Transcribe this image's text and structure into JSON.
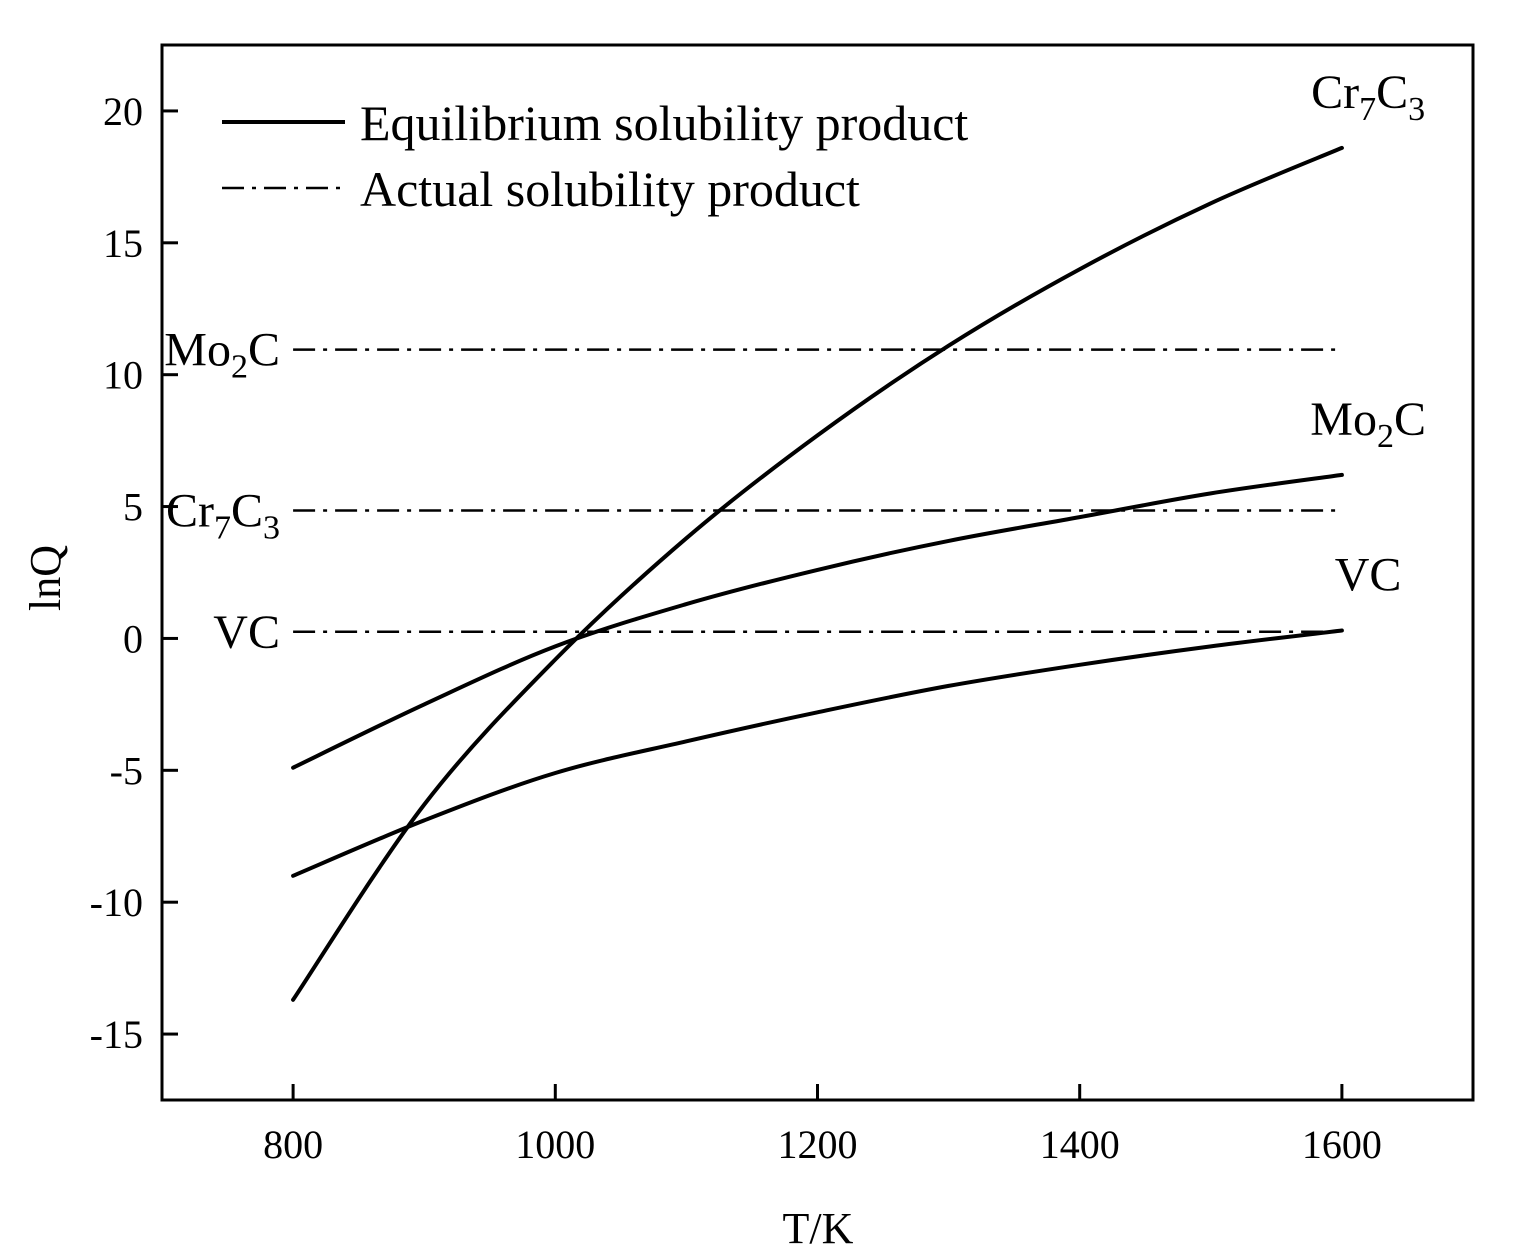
{
  "chart_data": {
    "type": "line",
    "xlabel": "T/K",
    "ylabel": "lnQ",
    "xlim": [
      700,
      1700
    ],
    "ylim": [
      -17.5,
      22.5
    ],
    "xticks": [
      800,
      1000,
      1200,
      1400,
      1600
    ],
    "xtick_labels": [
      "800",
      "1000",
      "1200",
      "1400",
      "1600"
    ],
    "yticks": [
      -15,
      -10,
      -5,
      0,
      5,
      10,
      15,
      20
    ],
    "ytick_labels": [
      "-15",
      "-10",
      "-5",
      "0",
      "5",
      "10",
      "15",
      "20"
    ],
    "grid": false,
    "legend": {
      "position": "top-left",
      "entries": [
        {
          "label": "Equilibrium solubility product",
          "style": "solid"
        },
        {
          "label": "Actual solubility product",
          "style": "dash-dot"
        }
      ]
    },
    "series": [
      {
        "name": "Cr7C3",
        "kind": "Equilibrium solubility product",
        "style": "solid",
        "label_parts": [
          {
            "t": "Cr"
          },
          {
            "t": "7",
            "sub": true
          },
          {
            "t": "C"
          },
          {
            "t": "3",
            "sub": true
          }
        ],
        "x": [
          800,
          900,
          1000,
          1100,
          1200,
          1300,
          1400,
          1500,
          1600
        ],
        "y": [
          -13.7,
          -6.3,
          -0.8,
          3.8,
          7.7,
          11.1,
          14.0,
          16.5,
          18.6
        ]
      },
      {
        "name": "Mo2C",
        "kind": "Equilibrium solubility product",
        "style": "solid",
        "label_parts": [
          {
            "t": "Mo"
          },
          {
            "t": "2",
            "sub": true
          },
          {
            "t": "C"
          }
        ],
        "x": [
          800,
          900,
          1000,
          1100,
          1200,
          1300,
          1400,
          1500,
          1600
        ],
        "y": [
          -4.9,
          -2.5,
          -0.3,
          1.3,
          2.6,
          3.7,
          4.6,
          5.5,
          6.2
        ]
      },
      {
        "name": "VC",
        "kind": "Equilibrium solubility product",
        "style": "solid",
        "label_parts": [
          {
            "t": "VC"
          }
        ],
        "x": [
          800,
          900,
          1000,
          1100,
          1200,
          1300,
          1400,
          1500,
          1600
        ],
        "y": [
          -9.0,
          -6.9,
          -5.1,
          -3.9,
          -2.8,
          -1.8,
          -1.0,
          -0.3,
          0.3
        ]
      },
      {
        "name": "Mo2C",
        "kind": "Actual solubility product",
        "style": "dash-dot",
        "label_parts": [
          {
            "t": "Mo"
          },
          {
            "t": "2",
            "sub": true
          },
          {
            "t": "C"
          }
        ],
        "x": [
          800,
          1600
        ],
        "y": [
          10.95,
          10.95
        ]
      },
      {
        "name": "Cr7C3",
        "kind": "Actual solubility product",
        "style": "dash-dot",
        "label_parts": [
          {
            "t": "Cr"
          },
          {
            "t": "7",
            "sub": true
          },
          {
            "t": "C"
          },
          {
            "t": "3",
            "sub": true
          }
        ],
        "x": [
          800,
          1600
        ],
        "y": [
          4.85,
          4.85
        ]
      },
      {
        "name": "VC",
        "kind": "Actual solubility product",
        "style": "dash-dot",
        "label_parts": [
          {
            "t": "VC"
          }
        ],
        "x": [
          800,
          1600
        ],
        "y": [
          0.25,
          0.25
        ]
      }
    ]
  }
}
